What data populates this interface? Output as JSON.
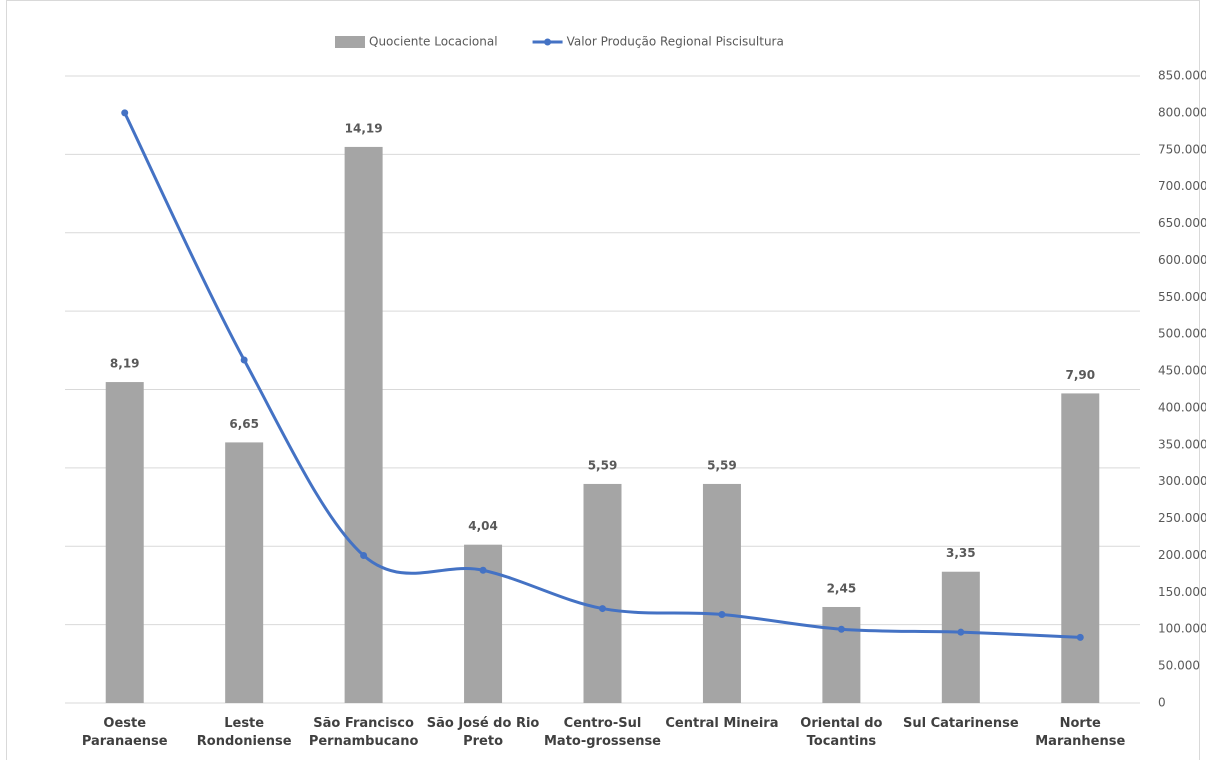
{
  "chart_data": {
    "type": "bar-line",
    "categories": [
      "Oeste Paranaense",
      "Leste Rondoniense",
      "São Francisco Pernambucano",
      "São José do Rio Preto",
      "Centro-Sul Mato-grossense",
      "Central Mineira",
      "Oriental do Tocantins",
      "Sul Catarinense",
      "Norte Maranhense"
    ],
    "series": [
      {
        "name": "Quociente Locacional",
        "type": "bar",
        "color": "#a5a5a5",
        "values": [
          8.19,
          6.65,
          14.19,
          4.04,
          5.59,
          5.59,
          2.45,
          3.35,
          7.9
        ],
        "value_labels": [
          "8,19",
          "6,65",
          "14,19",
          "4,04",
          "5,59",
          "5,59",
          "2,45",
          "3,35",
          "7,90"
        ]
      },
      {
        "name": "Valor Produção Regional Piscisultura",
        "type": "line",
        "axis": "y2",
        "color": "#4472c4",
        "values": [
          800000,
          465000,
          200000,
          180000,
          128000,
          120000,
          100000,
          96000,
          89000
        ]
      }
    ],
    "ylim": [
      0,
      16
    ],
    "yticks": [
      0,
      2,
      4,
      6,
      8,
      10,
      12,
      14,
      16
    ],
    "y_tick_labels": false,
    "y2lim": [
      0,
      850000
    ],
    "y2ticks": [
      0,
      {
        "value": 50000,
        "label": "50.000"
      },
      {
        "value": 100000,
        "label": "100.000"
      },
      {
        "value": 150000,
        "label": "150.000"
      },
      {
        "value": 200000,
        "label": "200.000"
      },
      {
        "value": 250000,
        "label": "250.000"
      },
      {
        "value": 300000,
        "label": "300.000"
      },
      {
        "value": 350000,
        "label": "350.000"
      },
      {
        "value": 400000,
        "label": "400.000"
      },
      {
        "value": 450000,
        "label": "450.000"
      },
      {
        "value": 500000,
        "label": "500.000"
      },
      {
        "value": 550000,
        "label": "550.000"
      },
      {
        "value": 600000,
        "label": "600.000"
      },
      {
        "value": 650000,
        "label": "650.000"
      },
      {
        "value": 700000,
        "label": "700.000"
      },
      {
        "value": 750000,
        "label": "750.000"
      },
      {
        "value": 800000,
        "label": "800.000"
      },
      {
        "value": 850000,
        "label": "850.000"
      }
    ],
    "grid": true,
    "legend": "top"
  }
}
